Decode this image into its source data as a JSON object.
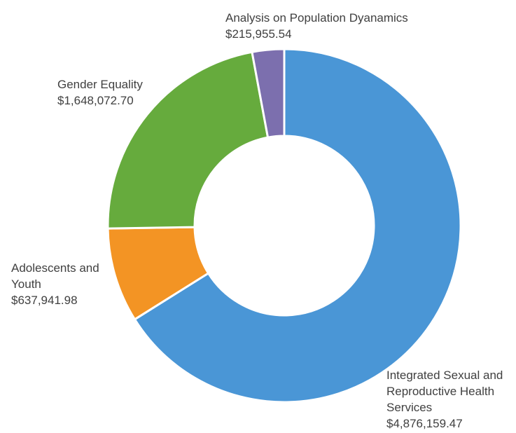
{
  "chart_data": {
    "type": "pie",
    "style": "donut",
    "title": "",
    "legend": "none",
    "slices": [
      {
        "label": "Integrated Sexual and Reproductive Health Services",
        "label_lines": [
          "Integrated Sexual and",
          "Reproductive Health",
          "Services"
        ],
        "value_text": "$4,876,159.47",
        "value": 4876159.47,
        "color": "#4a96d6"
      },
      {
        "label": "Adolescents and Youth",
        "label_lines": [
          "Adolescents and",
          "Youth"
        ],
        "value_text": "$637,941.98",
        "value": 637941.98,
        "color": "#f39424"
      },
      {
        "label": "Gender Equality",
        "label_lines": [
          "Gender Equality"
        ],
        "value_text": "$1,648,072.70",
        "value": 1648072.7,
        "color": "#66ab3d"
      },
      {
        "label": "Analysis on Population Dyanamics",
        "label_lines": [
          "Analysis on Population Dyanamics"
        ],
        "value_text": "$215,955.54",
        "value": 215955.54,
        "color": "#7c6fae"
      }
    ]
  }
}
